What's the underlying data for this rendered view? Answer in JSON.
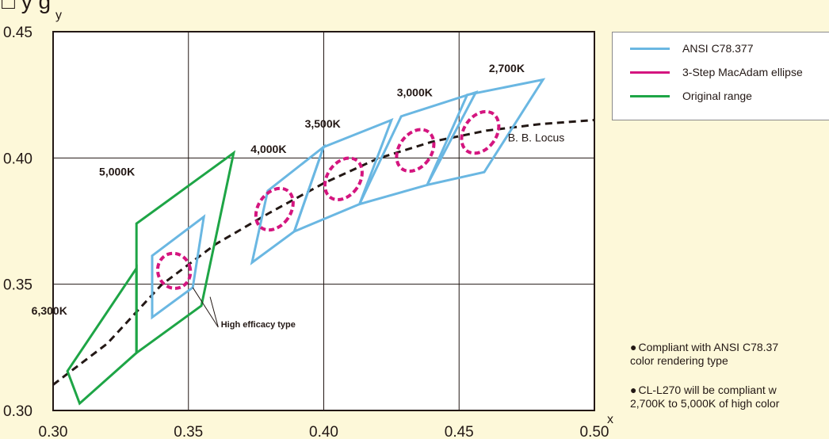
{
  "colors": {
    "background": "#fdf8d9",
    "ansi": "#6ab7e2",
    "macadam": "#d4157f",
    "original": "#1ea546",
    "locus": "#231815"
  },
  "header": {
    "title_fragment": "□  y  g"
  },
  "chart_data": {
    "type": "line",
    "xlabel": "x",
    "ylabel": "y",
    "xlim": [
      0.3,
      0.5
    ],
    "ylim": [
      0.3,
      0.45
    ],
    "grid": true,
    "x_ticks": [
      "0.30",
      "0.35",
      "0.40",
      "0.45",
      "0.50"
    ],
    "y_ticks": [
      "0.30",
      "0.35",
      "0.40",
      "0.45"
    ],
    "x_tick_values": [
      0.3,
      0.35,
      0.4,
      0.45,
      0.5
    ],
    "y_tick_values": [
      0.3,
      0.35,
      0.4,
      0.45
    ],
    "legend_position": "top-right",
    "series": [
      {
        "name": "ANSI C78.377",
        "kind": "quadrilaterals",
        "color": "#6ab7e2",
        "shapes": [
          {
            "label": "5,000K",
            "points": [
              [
                0.3366,
                0.3369
              ],
              [
                0.3366,
                0.3613
              ],
              [
                0.3557,
                0.3767
              ],
              [
                0.3516,
                0.3487
              ]
            ]
          },
          {
            "label": "4,000K",
            "points": [
              [
                0.3735,
                0.3586
              ],
              [
                0.3793,
                0.387
              ],
              [
                0.3999,
                0.4043
              ],
              [
                0.3891,
                0.3709
              ]
            ]
          },
          {
            "label": "3,500K",
            "points": [
              [
                0.3891,
                0.3709
              ],
              [
                0.3999,
                0.4043
              ],
              [
                0.425,
                0.415
              ],
              [
                0.4132,
                0.3817
              ]
            ]
          },
          {
            "label": "3,000K",
            "points": [
              [
                0.4132,
                0.3817
              ],
              [
                0.4286,
                0.4165
              ],
              [
                0.4562,
                0.426
              ],
              [
                0.4382,
                0.3893
              ]
            ]
          },
          {
            "label": "2,700K",
            "points": [
              [
                0.4382,
                0.3893
              ],
              [
                0.453,
                0.425
              ],
              [
                0.481,
                0.431
              ],
              [
                0.4593,
                0.3944
              ]
            ]
          }
        ]
      },
      {
        "name": "3-Step MacAdam ellipse",
        "kind": "ellipses",
        "color": "#d4157f",
        "shapes": [
          {
            "label": "5,000K",
            "center": [
              0.3447,
              0.3553
            ],
            "rx": 0.006,
            "ry": 0.007,
            "angle": -20
          },
          {
            "label": "4,000K",
            "center": [
              0.3818,
              0.3797
            ],
            "rx": 0.006,
            "ry": 0.009,
            "angle": 35
          },
          {
            "label": "3,500K",
            "center": [
              0.4073,
              0.3917
            ],
            "rx": 0.006,
            "ry": 0.009,
            "angle": 35
          },
          {
            "label": "3,000K",
            "center": [
              0.4338,
              0.403
            ],
            "rx": 0.006,
            "ry": 0.009,
            "angle": 35
          },
          {
            "label": "2,700K",
            "center": [
              0.4578,
              0.4101
            ],
            "rx": 0.006,
            "ry": 0.009,
            "angle": 35
          }
        ]
      },
      {
        "name": "Original range",
        "kind": "quadrilaterals",
        "color": "#1ea546",
        "shapes": [
          {
            "label": "6,300K",
            "points": [
              [
                0.3053,
                0.3156
              ],
              [
                0.3308,
                0.3563
              ],
              [
                0.3308,
                0.3228
              ],
              [
                0.3098,
                0.3028
              ]
            ]
          },
          {
            "label": "5,000K",
            "points": [
              [
                0.3308,
                0.3228
              ],
              [
                0.3308,
                0.374
              ],
              [
                0.3667,
                0.402
              ],
              [
                0.3548,
                0.3415
              ]
            ]
          }
        ]
      },
      {
        "name": "B. B. Locus",
        "kind": "curve",
        "color": "#231815",
        "x": [
          0.3,
          0.32,
          0.34,
          0.36,
          0.38,
          0.4,
          0.42,
          0.44,
          0.46,
          0.48,
          0.5
        ],
        "y": [
          0.3102,
          0.3265,
          0.3497,
          0.3658,
          0.3783,
          0.39,
          0.3998,
          0.4064,
          0.4108,
          0.4134,
          0.415
        ]
      }
    ],
    "annotations": [
      {
        "text": "2,700K",
        "x": 0.461,
        "y": 0.434
      },
      {
        "text": "3,000K",
        "x": 0.427,
        "y": 0.4245
      },
      {
        "text": "3,500K",
        "x": 0.393,
        "y": 0.412
      },
      {
        "text": "4,000K",
        "x": 0.373,
        "y": 0.402
      },
      {
        "text": "5,000K",
        "x": 0.317,
        "y": 0.393
      },
      {
        "text": "6,300K",
        "x": 0.292,
        "y": 0.338
      },
      {
        "text": "B. B. Locus",
        "x": 0.468,
        "y": 0.4065
      },
      {
        "text": "High efficacy type",
        "x": 0.362,
        "y": 0.333
      }
    ],
    "pointer": {
      "target_a": [
        0.3516,
        0.3487
      ],
      "target_b": [
        0.358,
        0.345
      ],
      "elbow": [
        0.361,
        0.333
      ]
    }
  },
  "legend": {
    "items": [
      {
        "label": "ANSI C78.377",
        "color": "#6ab7e2"
      },
      {
        "label": "3-Step MacAdam ellipse",
        "color": "#d4157f"
      },
      {
        "label": "Original range",
        "color": "#1ea546"
      }
    ]
  },
  "notes": {
    "bullet": "●",
    "line1a": "Compliant with ANSI C78.37",
    "line1b": "color rendering type",
    "line2a": "CL-L270 will be compliant w",
    "line2b": "2,700K to 5,000K of high color"
  }
}
